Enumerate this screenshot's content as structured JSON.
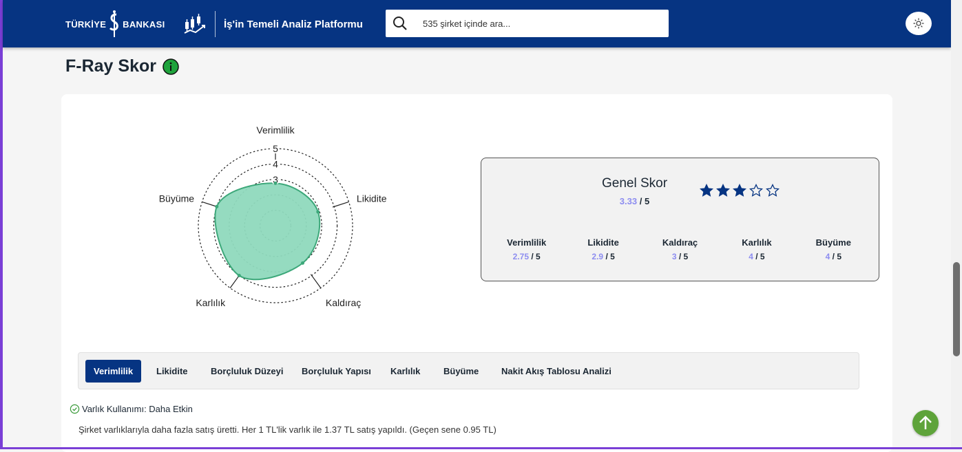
{
  "header": {
    "bank_name_left": "TÜRKİYE",
    "bank_name_right": "BANKASI",
    "platform_name": "İş'in Temeli Analiz Platformu",
    "search": {
      "placeholder": "535 şirket içinde ara..."
    },
    "theme_icon": "sun-icon"
  },
  "fray": {
    "title": "F-Ray Skor",
    "info_icon": "info-icon",
    "radar": {
      "axes": [
        "Verimlilik",
        "Likidite",
        "Kaldıraç",
        "Karlılık",
        "Büyüme"
      ],
      "ring_labels": [
        "5",
        "4",
        "3"
      ],
      "max": 5,
      "values": [
        2.75,
        2.9,
        3,
        4,
        4
      ],
      "fill_color": "#8fd9bd",
      "stroke_color": "#3da87a"
    },
    "general": {
      "title": "Genel Skor",
      "score": "3.33",
      "out_of": " / 5",
      "stars_filled": 3,
      "stars_total": 5,
      "star_color": "#063482"
    },
    "metrics": [
      {
        "label": "Verimlilik",
        "score": "2.75",
        "out_of": " / 5"
      },
      {
        "label": "Likidite",
        "score": "2.9",
        "out_of": " / 5"
      },
      {
        "label": "Kaldıraç",
        "score": "3",
        "out_of": " / 5"
      },
      {
        "label": "Karlılık",
        "score": "4",
        "out_of": " / 5"
      },
      {
        "label": "Büyüme",
        "score": "4",
        "out_of": " / 5"
      }
    ]
  },
  "tabs": [
    {
      "label": "Verimlilik",
      "active": true
    },
    {
      "label": "Likidite"
    },
    {
      "label": "Borçluluk Düzeyi"
    },
    {
      "label": "Borçluluk Yapısı"
    },
    {
      "label": "Karlılık"
    },
    {
      "label": "Büyüme"
    },
    {
      "label": "Nakit Akış Tablosu Analizi"
    }
  ],
  "analysis": {
    "heading": "Varlık Kullanımı: Daha Etkin",
    "status_icon": "check-circle-icon",
    "text": "Şirket varlıklarıyla daha fazla satış üretti. Her 1 TL'lik varlık ile 1.37 TL satış yapıldı. (Geçen sene 0.95 TL)"
  },
  "scroll_top_icon": "arrow-up-icon"
}
